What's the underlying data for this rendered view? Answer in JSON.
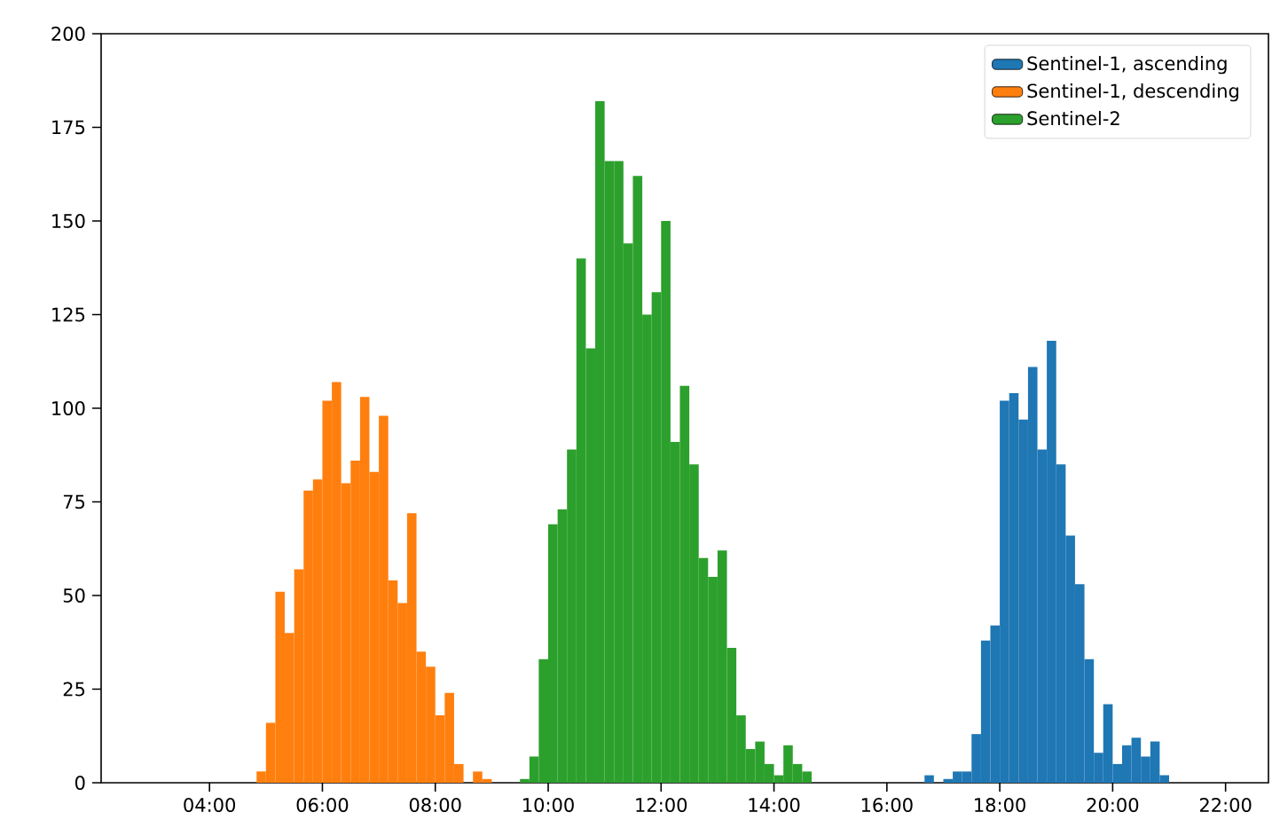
{
  "chart_data": {
    "type": "histogram",
    "xlim": [
      2.08,
      22.76
    ],
    "ylim": [
      0,
      200
    ],
    "xticks": [
      {
        "value": 4,
        "label": "04:00"
      },
      {
        "value": 6,
        "label": "06:00"
      },
      {
        "value": 8,
        "label": "08:00"
      },
      {
        "value": 10,
        "label": "10:00"
      },
      {
        "value": 12,
        "label": "12:00"
      },
      {
        "value": 14,
        "label": "14:00"
      },
      {
        "value": 16,
        "label": "16:00"
      },
      {
        "value": 18,
        "label": "18:00"
      },
      {
        "value": 20,
        "label": "20:00"
      },
      {
        "value": 22,
        "label": "22:00"
      }
    ],
    "yticks": [
      0,
      25,
      50,
      75,
      100,
      125,
      150,
      175,
      200
    ],
    "grid": false,
    "legend": "top right",
    "bins": [
      4.833,
      5,
      5.167,
      5.333,
      5.5,
      5.667,
      5.833,
      6,
      6.167,
      6.333,
      6.5,
      6.667,
      6.833,
      7,
      7.167,
      7.333,
      7.5,
      7.667,
      7.833,
      8,
      8.167,
      8.333,
      8.5,
      8.667,
      8.833,
      9,
      9.167,
      9.333,
      9.5,
      9.667,
      9.833,
      10,
      10.167,
      10.333,
      10.5,
      10.667,
      10.833,
      11,
      11.167,
      11.333,
      11.5,
      11.667,
      11.833,
      12,
      12.167,
      12.333,
      12.5,
      12.667,
      12.833,
      13,
      13.167,
      13.333,
      13.5,
      13.667,
      13.833,
      14,
      14.167,
      14.333,
      14.5,
      14.667,
      14.833,
      15,
      15.167,
      15.333,
      15.5,
      15.667,
      15.833,
      16,
      16.167,
      16.333,
      16.5,
      16.667,
      16.833,
      17,
      17.167,
      17.333,
      17.5,
      17.667,
      17.833,
      18,
      18.167,
      18.333,
      18.5,
      18.667,
      18.833,
      19,
      19.167,
      19.333,
      19.5,
      19.667,
      19.833,
      20,
      20.167,
      20.333,
      20.5,
      20.667,
      20.833,
      21
    ],
    "series": [
      {
        "name": "Sentinel-1, ascending",
        "color": "#1f77b4",
        "values": [
          0,
          0,
          0,
          0,
          0,
          0,
          0,
          0,
          0,
          0,
          0,
          0,
          0,
          0,
          0,
          0,
          0,
          0,
          0,
          0,
          0,
          0,
          0,
          0,
          0,
          0,
          0,
          0,
          0,
          0,
          0,
          0,
          0,
          0,
          0,
          0,
          0,
          0,
          0,
          0,
          0,
          0,
          0,
          0,
          0,
          0,
          0,
          0,
          0,
          0,
          0,
          0,
          0,
          0,
          0,
          0,
          0,
          0,
          0,
          0,
          0,
          0,
          0,
          0,
          0,
          0,
          0,
          0,
          0,
          0,
          0,
          2,
          0,
          1,
          3,
          3,
          13,
          38,
          42,
          102,
          104,
          97,
          111,
          89,
          118,
          85,
          66,
          53,
          33,
          8,
          21,
          5,
          10,
          12,
          7,
          11,
          2
        ]
      },
      {
        "name": "Sentinel-1, descending",
        "color": "#ff7f0e",
        "values": [
          3,
          16,
          51,
          40,
          57,
          78,
          81,
          102,
          107,
          80,
          86,
          103,
          83,
          98,
          54,
          48,
          72,
          35,
          31,
          18,
          24,
          5,
          0,
          3,
          1,
          0,
          0,
          0,
          0,
          0,
          0,
          0,
          0,
          0,
          0,
          0,
          0,
          0,
          0,
          0,
          0,
          0,
          0,
          0,
          0,
          0,
          0,
          0,
          0,
          0,
          0,
          0,
          0,
          0,
          0,
          0,
          0,
          0,
          0,
          0,
          0,
          0,
          0,
          0,
          0,
          0,
          0,
          0,
          0,
          0,
          0,
          0,
          0,
          0,
          0,
          0,
          0,
          0,
          0,
          0,
          0,
          0,
          0,
          0,
          0,
          0,
          0,
          0,
          0,
          0,
          0,
          0,
          0,
          0,
          0,
          0,
          0
        ]
      },
      {
        "name": "Sentinel-2",
        "color": "#2ca02c",
        "values": [
          0,
          0,
          0,
          0,
          0,
          0,
          0,
          0,
          0,
          0,
          0,
          0,
          0,
          0,
          0,
          0,
          0,
          0,
          0,
          0,
          0,
          0,
          0,
          0,
          0,
          0,
          0,
          0,
          1,
          7,
          33,
          69,
          73,
          89,
          140,
          116,
          182,
          166,
          166,
          144,
          162,
          125,
          131,
          150,
          91,
          106,
          85,
          60,
          55,
          62,
          36,
          18,
          9,
          11,
          5,
          2,
          10,
          5,
          3,
          0,
          0,
          0,
          0,
          0,
          0,
          0,
          0,
          0,
          0,
          0,
          0,
          0,
          0,
          0,
          0,
          0,
          0,
          0,
          0,
          0,
          0,
          0,
          0,
          0,
          0,
          0,
          0,
          0,
          0,
          0,
          0,
          0,
          0,
          0,
          0,
          0,
          0
        ]
      }
    ]
  }
}
